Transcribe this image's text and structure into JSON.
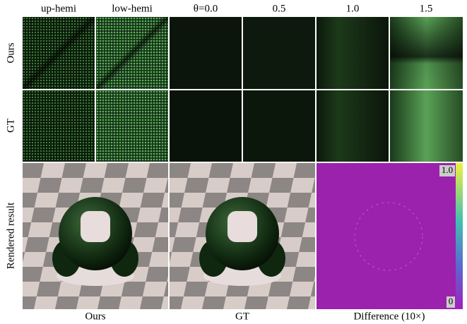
{
  "header": {
    "columns": [
      "up-hemi",
      "low-hemi",
      "θ=0.0",
      "0.5",
      "1.0",
      "1.5"
    ]
  },
  "rows": {
    "labels": [
      "Ours",
      "GT",
      "Rendered result"
    ]
  },
  "footer": {
    "labels": [
      "Ours",
      "GT",
      "Difference (10×)"
    ]
  },
  "colorbar": {
    "top": "1.0",
    "bottom": "0"
  }
}
